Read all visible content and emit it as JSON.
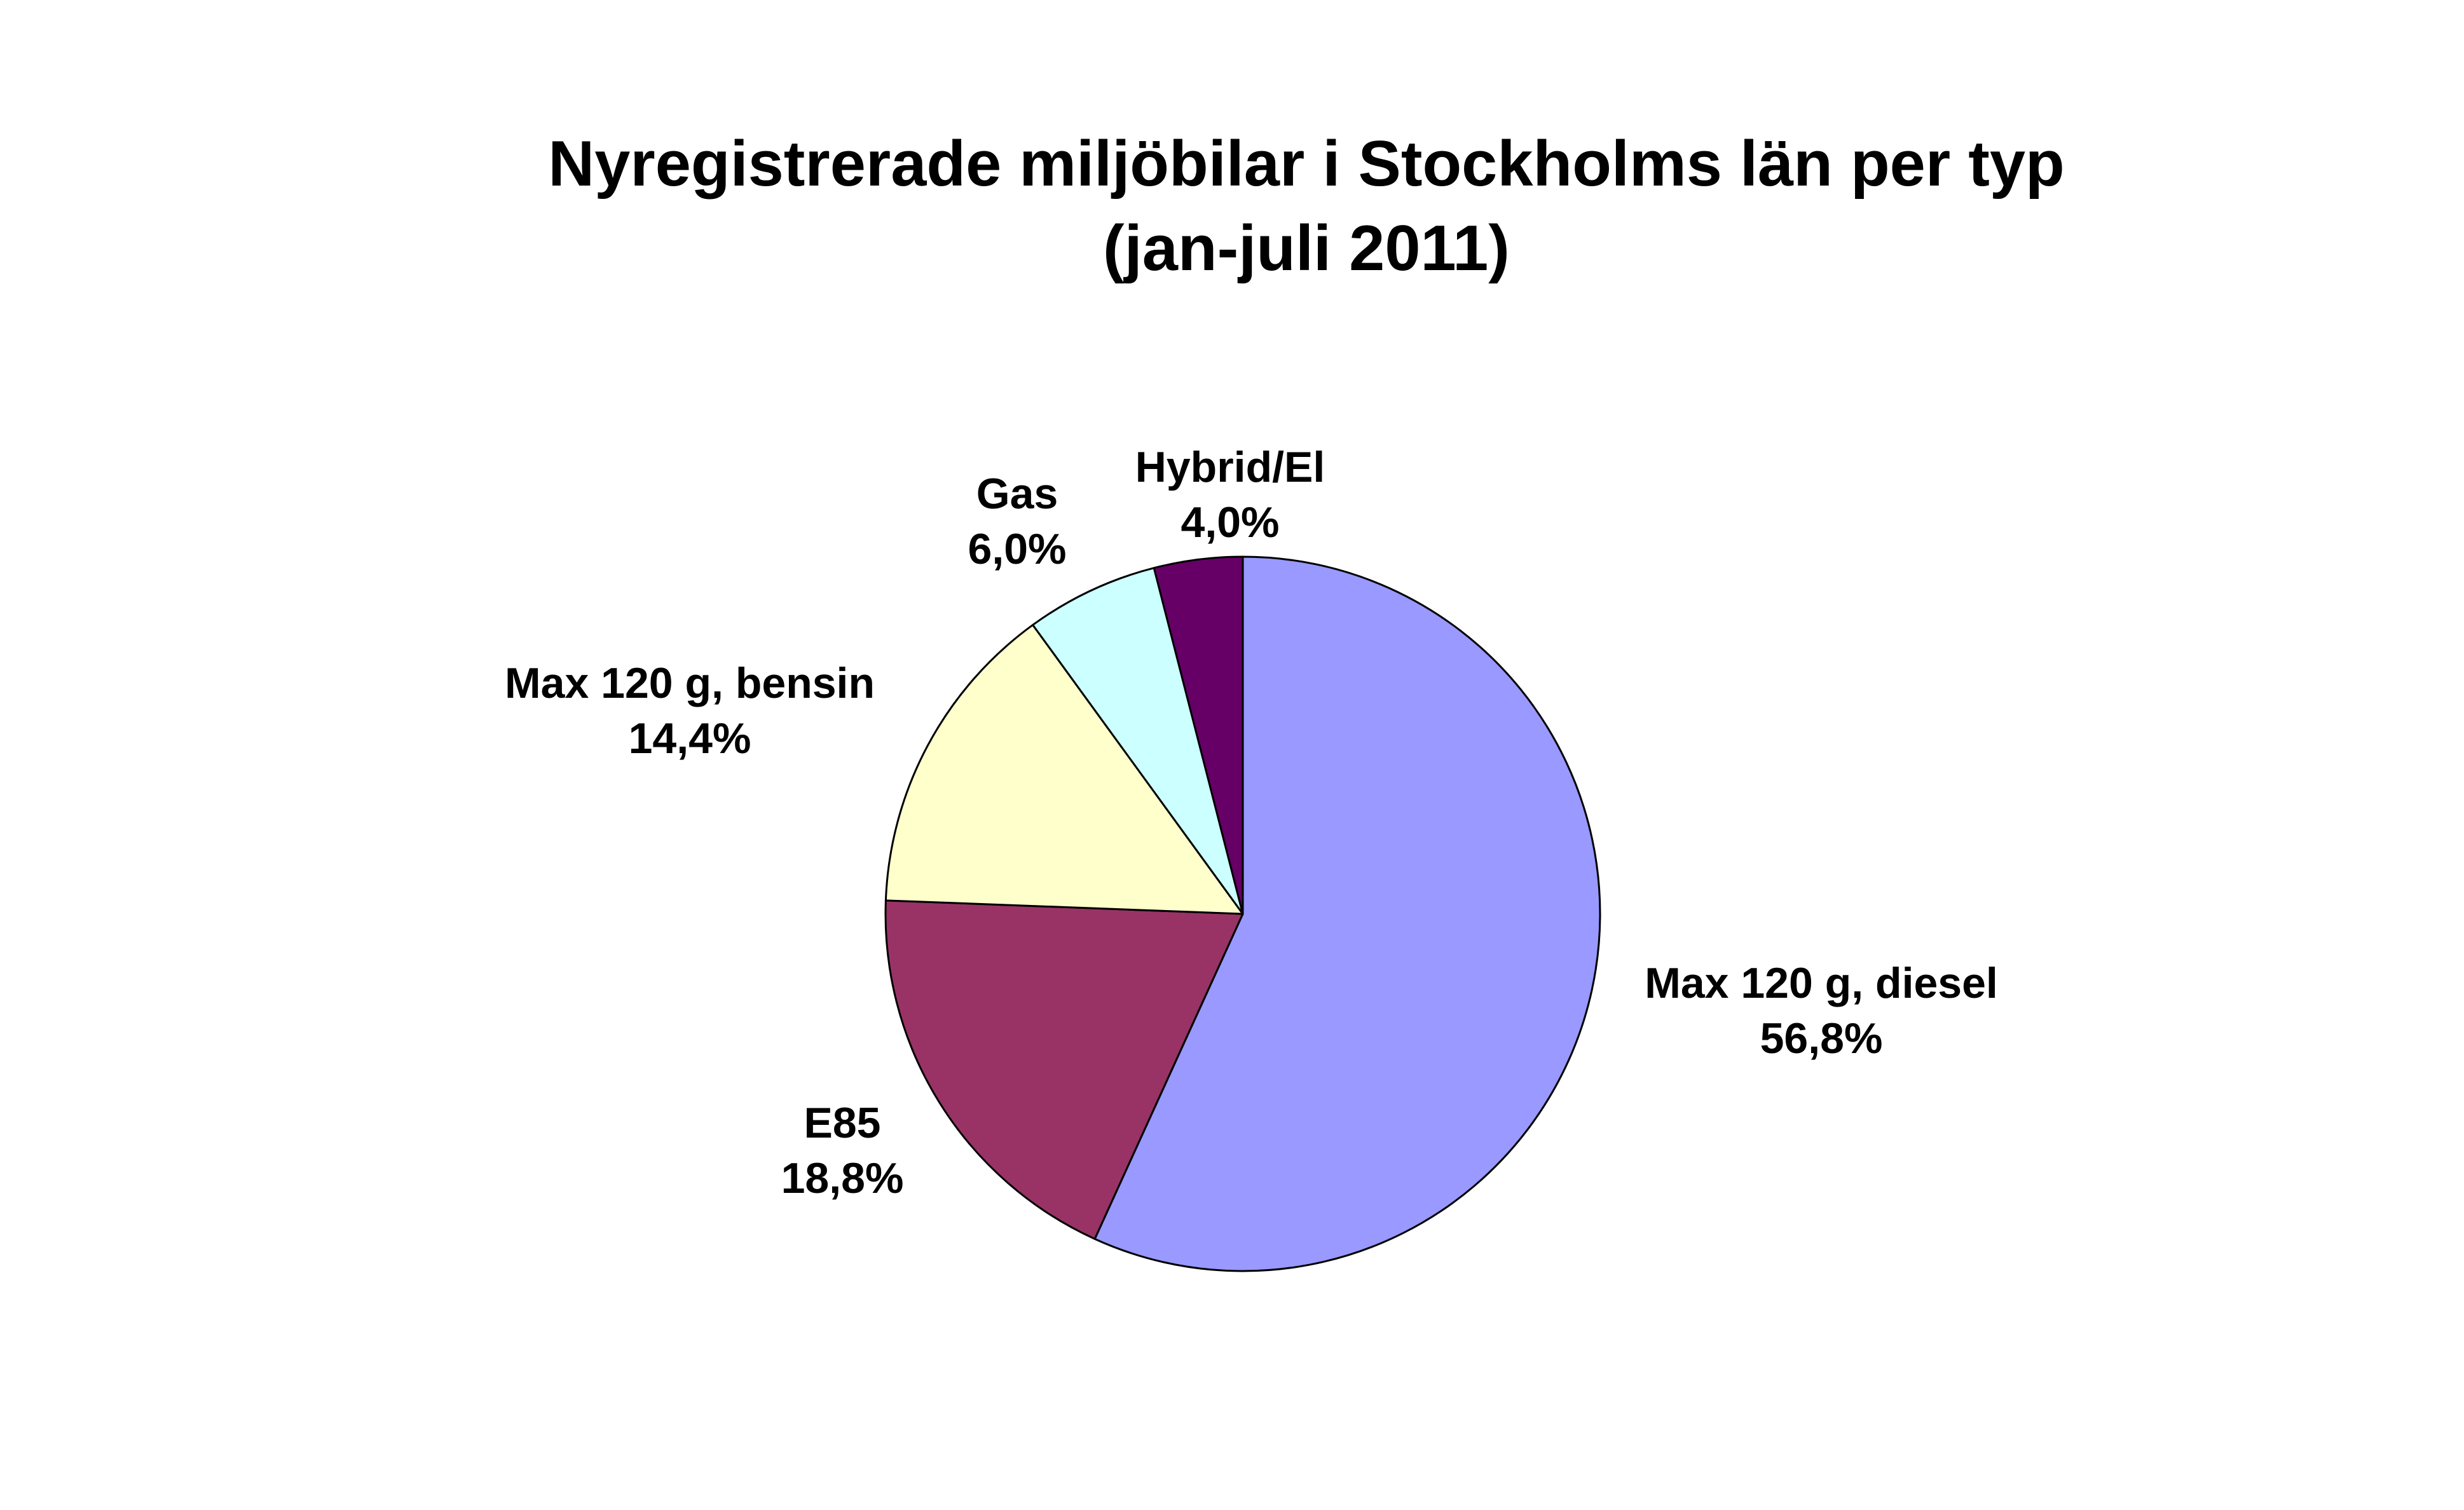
{
  "chart_data": {
    "type": "pie",
    "title": "Nyregistrerade miljöbilar i Stockholms län per typ",
    "subtitle": "(jan-juli 2011)",
    "slices": [
      {
        "label": "Max 120 g, diesel",
        "value": 56.8,
        "value_label": "56,8%",
        "color": "#9999ff"
      },
      {
        "label": "E85",
        "value": 18.8,
        "value_label": "18,8%",
        "color": "#993366"
      },
      {
        "label": "Max 120 g, bensin",
        "value": 14.4,
        "value_label": "14,4%",
        "color": "#ffffcc"
      },
      {
        "label": "Gas",
        "value": 6.0,
        "value_label": "6,0%",
        "color": "#ccffff"
      },
      {
        "label": "Hybrid/El",
        "value": 4.0,
        "value_label": "4,0%",
        "color": "#660066"
      }
    ],
    "start_angle": "12 o'clock",
    "direction": "clockwise",
    "legend": "none"
  }
}
